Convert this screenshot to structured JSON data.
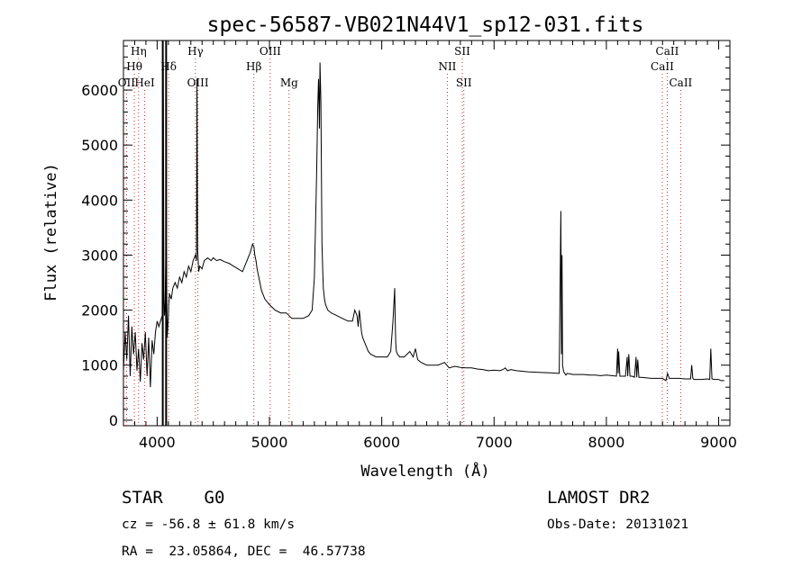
{
  "chart_data": {
    "type": "line",
    "title": "spec-56587-VB021N44V1_sp12-031.fits",
    "xlabel": "Wavelength (Å)",
    "ylabel": "Flux (relative)",
    "xlim": [
      3700,
      9100
    ],
    "ylim": [
      -100,
      6900
    ],
    "xticks": [
      4000,
      5000,
      6000,
      7000,
      8000,
      9000
    ],
    "yticks": [
      0,
      1000,
      2000,
      3000,
      4000,
      5000,
      6000
    ],
    "grid": false,
    "series": [
      {
        "x": [
          3700,
          3715,
          3730,
          3745,
          3760,
          3775,
          3790,
          3805,
          3820,
          3835,
          3850,
          3865,
          3880,
          3895,
          3910,
          3925,
          3940,
          3955,
          3970,
          3985,
          4000,
          4015,
          4030,
          4045,
          4055,
          4060,
          4065,
          4070,
          4080,
          4090,
          4100,
          4103,
          4110,
          4125,
          4140,
          4160,
          4180,
          4200,
          4220,
          4240,
          4260,
          4280,
          4300,
          4320,
          4340,
          4350,
          4355,
          4360,
          4365,
          4370,
          4380,
          4400,
          4420,
          4450,
          4480,
          4500,
          4530,
          4560,
          4600,
          4640,
          4680,
          4720,
          4760,
          4800,
          4830,
          4850,
          4862,
          4870,
          4880,
          4890,
          4910,
          4930,
          4960,
          5000,
          5050,
          5100,
          5150,
          5200,
          5250,
          5300,
          5350,
          5380,
          5400,
          5420,
          5430,
          5437,
          5445,
          5450,
          5458,
          5463,
          5468,
          5475,
          5480,
          5490,
          5500,
          5520,
          5550,
          5600,
          5650,
          5700,
          5740,
          5760,
          5780,
          5790,
          5800,
          5810,
          5820,
          5830,
          5850,
          5880,
          5900,
          5950,
          6000,
          6050,
          6080,
          6100,
          6110,
          6115,
          6120,
          6125,
          6130,
          6140,
          6160,
          6200,
          6250,
          6280,
          6300,
          6320,
          6350,
          6400,
          6450,
          6500,
          6560,
          6600,
          6650,
          6700,
          6750,
          6800,
          6850,
          6900,
          6950,
          7000,
          7050,
          7080,
          7100,
          7120,
          7150,
          7200,
          7300,
          7400,
          7500,
          7580,
          7595,
          7600,
          7605,
          7610,
          7620,
          7630,
          7640,
          7650,
          7680,
          7700,
          7750,
          7800,
          7850,
          7900,
          7950,
          8000,
          8050,
          8090,
          8100,
          8105,
          8110,
          8120,
          8150,
          8170,
          8185,
          8190,
          8200,
          8210,
          8230,
          8250,
          8265,
          8270,
          8280,
          8290,
          8300,
          8310,
          8350,
          8400,
          8450,
          8500,
          8530,
          8545,
          8560,
          8600,
          8650,
          8700,
          8750,
          8760,
          8770,
          8780,
          8800,
          8850,
          8900,
          8920,
          8930,
          8940,
          8960,
          9000,
          9020,
          9040,
          9050
        ],
        "y": [
          900,
          1600,
          1100,
          1900,
          800,
          1700,
          1200,
          1600,
          900,
          1300,
          700,
          1400,
          1100,
          1600,
          800,
          1500,
          600,
          1450,
          1200,
          1600,
          1800,
          1700,
          1800,
          1900,
          6500,
          2200,
          1900,
          2000,
          3300,
          1500,
          1900,
          2100,
          2300,
          2200,
          2400,
          2500,
          2400,
          2600,
          2500,
          2700,
          2600,
          2800,
          2700,
          2900,
          3000,
          2900,
          6200,
          3100,
          2900,
          2700,
          2800,
          2750,
          2900,
          2950,
          2900,
          2950,
          2900,
          2920,
          2880,
          2850,
          2800,
          2750,
          2700,
          2900,
          3050,
          3200,
          3150,
          3000,
          2900,
          2750,
          2550,
          2350,
          2200,
          2100,
          2000,
          1950,
          1950,
          1850,
          1850,
          1850,
          1900,
          2000,
          2600,
          4500,
          5700,
          6200,
          5300,
          6500,
          5800,
          4500,
          3200,
          2700,
          2400,
          2200,
          2100,
          2000,
          1950,
          1900,
          1850,
          1800,
          1800,
          2000,
          1900,
          1700,
          2000,
          1800,
          1600,
          1500,
          1400,
          1250,
          1200,
          1150,
          1150,
          1150,
          1250,
          1800,
          2200,
          2400,
          1800,
          1400,
          1250,
          1200,
          1150,
          1150,
          1250,
          1150,
          1300,
          1100,
          1050,
          1000,
          1000,
          1000,
          1050,
          950,
          980,
          960,
          950,
          950,
          930,
          920,
          900,
          910,
          900,
          920,
          950,
          900,
          920,
          900,
          880,
          870,
          860,
          850,
          3800,
          1200,
          3000,
          1000,
          880,
          850,
          820,
          850,
          840,
          830,
          830,
          830,
          820,
          820,
          810,
          820,
          810,
          800,
          1300,
          850,
          1250,
          800,
          800,
          800,
          1150,
          800,
          1200,
          800,
          800,
          780,
          1150,
          780,
          1100,
          780,
          780,
          780,
          770,
          760,
          760,
          760,
          720,
          850,
          760,
          760,
          760,
          750,
          750,
          1000,
          760,
          740,
          740,
          740,
          750,
          740,
          1300,
          750,
          740,
          740,
          720,
          720,
          720
        ]
      }
    ],
    "line_markers": [
      {
        "label": "Hη",
        "x": 3835,
        "row": 1,
        "style": "dot"
      },
      {
        "label": "Hθ",
        "x": 3797,
        "row": 2,
        "style": "dot"
      },
      {
        "label": "OII",
        "x": 3727,
        "row": 3,
        "style": "dot"
      },
      {
        "label": "HeI",
        "x": 3889,
        "row": 3,
        "style": "dot"
      },
      {
        "label": "Hδ",
        "x": 4102,
        "row": 2,
        "style": "dot"
      },
      {
        "label": "Hγ",
        "x": 4341,
        "row": 1,
        "style": "dot"
      },
      {
        "label": "OIII",
        "x": 4363,
        "row": 3,
        "style": "dot"
      },
      {
        "label": "OIII",
        "x": 5007,
        "row": 1,
        "style": "dot"
      },
      {
        "label": "Hβ",
        "x": 4861,
        "row": 2,
        "style": "dot"
      },
      {
        "label": "Mg",
        "x": 5175,
        "row": 3,
        "style": "dot"
      },
      {
        "label": "SII",
        "x": 6717,
        "row": 1,
        "style": "dot"
      },
      {
        "label": "NII",
        "x": 6584,
        "row": 2,
        "style": "dot"
      },
      {
        "label": "SII",
        "x": 6731,
        "row": 3,
        "style": "dot"
      },
      {
        "label": "CaII",
        "x": 8542,
        "row": 1,
        "style": "dot"
      },
      {
        "label": "CaII",
        "x": 8498,
        "row": 2,
        "style": "dot"
      },
      {
        "label": "CaII",
        "x": 8662,
        "row": 3,
        "style": "dot"
      }
    ],
    "solid_markers_x": [
      4050,
      4080
    ]
  },
  "info": {
    "class_text": "STAR    G0",
    "survey_text": "LAMOST DR2",
    "cz_text": "cz = -56.8 ± 61.8 km/s",
    "obs_date_text": "Obs-Date: 20131021",
    "radec_text": "RA =  23.05864, DEC =  46.57738"
  }
}
